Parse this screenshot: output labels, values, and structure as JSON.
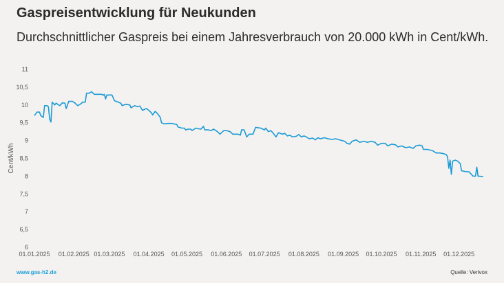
{
  "header": {
    "title": "Gaspreisentwicklung für Neukunden",
    "subtitle": "Durchschnittlicher Gaspreis bei einem Jahresverbrauch von 20.000 kWh in Cent/kWh."
  },
  "footer": {
    "website": "www.gas-h2.de",
    "source": "Quelle: Verivox"
  },
  "colors": {
    "line": "#1a9ad6",
    "link": "#1ea0d8",
    "background": "#f3f2f0"
  },
  "chart_data": {
    "type": "line",
    "title": "Gaspreisentwicklung für Neukunden",
    "subtitle": "Durchschnittlicher Gaspreis bei einem Jahresverbrauch von 20.000 kWh in Cent/kWh.",
    "xlabel": "",
    "ylabel": "Cent/kWh",
    "xlim": [
      "2025-01-01",
      "2025-12-31"
    ],
    "ylim": [
      6,
      11
    ],
    "grid": false,
    "legend": "none",
    "x_tick_labels": [
      "01.01.2025",
      "01.02.2025",
      "01.03.2025",
      "01.04.2025",
      "01.05.2025",
      "01.06.2025",
      "01.07.2025",
      "01.08.2025",
      "01.09.2025",
      "01.10.2025",
      "01.11.2025",
      "01.12.2025"
    ],
    "x_ticks": [
      "2025-01-01",
      "2025-02-01",
      "2025-03-01",
      "2025-04-01",
      "2025-05-01",
      "2025-06-01",
      "2025-07-01",
      "2025-08-01",
      "2025-09-01",
      "2025-10-01",
      "2025-11-01",
      "2025-12-01"
    ],
    "y_tick_labels": [
      "6",
      "6,5",
      "7",
      "7,5",
      "8",
      "8,5",
      "9",
      "9,5",
      "10",
      "10,5",
      "11"
    ],
    "y_ticks": [
      6,
      6.5,
      7,
      7.5,
      8,
      8.5,
      9,
      9.5,
      10,
      10.5,
      11
    ],
    "series": [
      {
        "points": [
          [
            "2025-01-01",
            9.7
          ],
          [
            "2025-01-03",
            9.8
          ],
          [
            "2025-01-05",
            9.8
          ],
          [
            "2025-01-06",
            9.7
          ],
          [
            "2025-01-08",
            9.65
          ],
          [
            "2025-01-09",
            9.98
          ],
          [
            "2025-01-11",
            9.98
          ],
          [
            "2025-01-12",
            9.95
          ],
          [
            "2025-01-13",
            9.6
          ],
          [
            "2025-01-14",
            9.52
          ],
          [
            "2025-01-15",
            10.08
          ],
          [
            "2025-01-17",
            10.0
          ],
          [
            "2025-01-18",
            10.05
          ],
          [
            "2025-01-21",
            9.98
          ],
          [
            "2025-01-23",
            10.06
          ],
          [
            "2025-01-25",
            10.05
          ],
          [
            "2025-01-26",
            9.9
          ],
          [
            "2025-01-28",
            10.1
          ],
          [
            "2025-01-31",
            10.1
          ],
          [
            "2025-02-02",
            10.05
          ],
          [
            "2025-02-04",
            9.98
          ],
          [
            "2025-02-06",
            10.02
          ],
          [
            "2025-02-08",
            10.08
          ],
          [
            "2025-02-10",
            10.08
          ],
          [
            "2025-02-11",
            10.33
          ],
          [
            "2025-02-13",
            10.33
          ],
          [
            "2025-02-15",
            10.37
          ],
          [
            "2025-02-17",
            10.3
          ],
          [
            "2025-02-19",
            10.3
          ],
          [
            "2025-02-23",
            10.3
          ],
          [
            "2025-02-24",
            10.27
          ],
          [
            "2025-02-25",
            10.3
          ],
          [
            "2025-02-26",
            10.17
          ],
          [
            "2025-02-27",
            10.28
          ],
          [
            "2025-03-03",
            10.28
          ],
          [
            "2025-03-05",
            10.12
          ],
          [
            "2025-03-08",
            10.08
          ],
          [
            "2025-03-10",
            10.05
          ],
          [
            "2025-03-11",
            9.98
          ],
          [
            "2025-03-14",
            10.02
          ],
          [
            "2025-03-17",
            10.0
          ],
          [
            "2025-03-18",
            9.92
          ],
          [
            "2025-03-21",
            9.98
          ],
          [
            "2025-03-23",
            9.95
          ],
          [
            "2025-03-25",
            9.97
          ],
          [
            "2025-03-27",
            9.85
          ],
          [
            "2025-03-30",
            9.9
          ],
          [
            "2025-04-01",
            9.85
          ],
          [
            "2025-04-03",
            9.78
          ],
          [
            "2025-04-04",
            9.72
          ],
          [
            "2025-04-06",
            9.82
          ],
          [
            "2025-04-08",
            9.75
          ],
          [
            "2025-04-10",
            9.65
          ],
          [
            "2025-04-11",
            9.5
          ],
          [
            "2025-04-13",
            9.47
          ],
          [
            "2025-04-16",
            9.48
          ],
          [
            "2025-04-19",
            9.48
          ],
          [
            "2025-04-23",
            9.45
          ],
          [
            "2025-04-24",
            9.38
          ],
          [
            "2025-04-27",
            9.35
          ],
          [
            "2025-04-29",
            9.35
          ],
          [
            "2025-04-30",
            9.3
          ],
          [
            "2025-05-02",
            9.32
          ],
          [
            "2025-05-04",
            9.32
          ],
          [
            "2025-05-05",
            9.28
          ],
          [
            "2025-05-08",
            9.35
          ],
          [
            "2025-05-10",
            9.33
          ],
          [
            "2025-05-12",
            9.32
          ],
          [
            "2025-05-14",
            9.4
          ],
          [
            "2025-05-15",
            9.3
          ],
          [
            "2025-05-18",
            9.3
          ],
          [
            "2025-05-20",
            9.28
          ],
          [
            "2025-05-22",
            9.32
          ],
          [
            "2025-05-25",
            9.25
          ],
          [
            "2025-05-27",
            9.18
          ],
          [
            "2025-05-30",
            9.28
          ],
          [
            "2025-06-01",
            9.28
          ],
          [
            "2025-06-04",
            9.25
          ],
          [
            "2025-06-06",
            9.18
          ],
          [
            "2025-06-10",
            9.18
          ],
          [
            "2025-06-12",
            9.15
          ],
          [
            "2025-06-13",
            9.3
          ],
          [
            "2025-06-15",
            9.3
          ],
          [
            "2025-06-17",
            9.1
          ],
          [
            "2025-06-19",
            9.18
          ],
          [
            "2025-06-22",
            9.18
          ],
          [
            "2025-06-24",
            9.37
          ],
          [
            "2025-06-28",
            9.35
          ],
          [
            "2025-07-01",
            9.3
          ],
          [
            "2025-07-02",
            9.35
          ],
          [
            "2025-07-04",
            9.25
          ],
          [
            "2025-07-06",
            9.28
          ],
          [
            "2025-07-08",
            9.2
          ],
          [
            "2025-07-10",
            9.1
          ],
          [
            "2025-07-12",
            9.22
          ],
          [
            "2025-07-15",
            9.18
          ],
          [
            "2025-07-17",
            9.2
          ],
          [
            "2025-07-19",
            9.13
          ],
          [
            "2025-07-21",
            9.15
          ],
          [
            "2025-07-23",
            9.1
          ],
          [
            "2025-07-26",
            9.12
          ],
          [
            "2025-07-28",
            9.17
          ],
          [
            "2025-07-30",
            9.1
          ],
          [
            "2025-08-01",
            9.13
          ],
          [
            "2025-08-03",
            9.1
          ],
          [
            "2025-08-05",
            9.05
          ],
          [
            "2025-08-08",
            9.07
          ],
          [
            "2025-08-10",
            9.02
          ],
          [
            "2025-08-12",
            9.08
          ],
          [
            "2025-08-14",
            9.05
          ],
          [
            "2025-08-17",
            9.08
          ],
          [
            "2025-08-20",
            9.05
          ],
          [
            "2025-08-23",
            9.03
          ],
          [
            "2025-08-26",
            9.05
          ],
          [
            "2025-08-29",
            9.02
          ],
          [
            "2025-08-31",
            9.0
          ],
          [
            "2025-09-02",
            8.98
          ],
          [
            "2025-09-04",
            8.92
          ],
          [
            "2025-09-06",
            8.9
          ],
          [
            "2025-09-08",
            8.98
          ],
          [
            "2025-09-11",
            9.02
          ],
          [
            "2025-09-14",
            8.95
          ],
          [
            "2025-09-17",
            8.98
          ],
          [
            "2025-09-20",
            8.95
          ],
          [
            "2025-09-23",
            8.98
          ],
          [
            "2025-09-26",
            8.95
          ],
          [
            "2025-09-28",
            8.87
          ],
          [
            "2025-10-01",
            8.92
          ],
          [
            "2025-10-04",
            8.92
          ],
          [
            "2025-10-06",
            8.85
          ],
          [
            "2025-10-09",
            8.9
          ],
          [
            "2025-10-12",
            8.88
          ],
          [
            "2025-10-14",
            8.82
          ],
          [
            "2025-10-17",
            8.85
          ],
          [
            "2025-10-20",
            8.8
          ],
          [
            "2025-10-23",
            8.82
          ],
          [
            "2025-10-26",
            8.78
          ],
          [
            "2025-10-28",
            8.85
          ],
          [
            "2025-10-31",
            8.87
          ],
          [
            "2025-11-02",
            8.85
          ],
          [
            "2025-11-03",
            8.75
          ],
          [
            "2025-11-06",
            8.75
          ],
          [
            "2025-11-10",
            8.72
          ],
          [
            "2025-11-13",
            8.65
          ],
          [
            "2025-11-16",
            8.65
          ],
          [
            "2025-11-19",
            8.63
          ],
          [
            "2025-11-21",
            8.6
          ],
          [
            "2025-11-22",
            8.55
          ],
          [
            "2025-11-23",
            8.22
          ],
          [
            "2025-11-24",
            8.45
          ],
          [
            "2025-11-25",
            8.05
          ],
          [
            "2025-11-26",
            8.42
          ],
          [
            "2025-11-28",
            8.45
          ],
          [
            "2025-11-30",
            8.42
          ],
          [
            "2025-12-02",
            8.35
          ],
          [
            "2025-12-03",
            8.15
          ],
          [
            "2025-12-06",
            8.13
          ],
          [
            "2025-12-09",
            8.12
          ],
          [
            "2025-12-12",
            8.0
          ],
          [
            "2025-12-14",
            8.0
          ],
          [
            "2025-12-15",
            8.25
          ],
          [
            "2025-12-16",
            8.0
          ],
          [
            "2025-12-20",
            7.99
          ]
        ]
      }
    ]
  }
}
